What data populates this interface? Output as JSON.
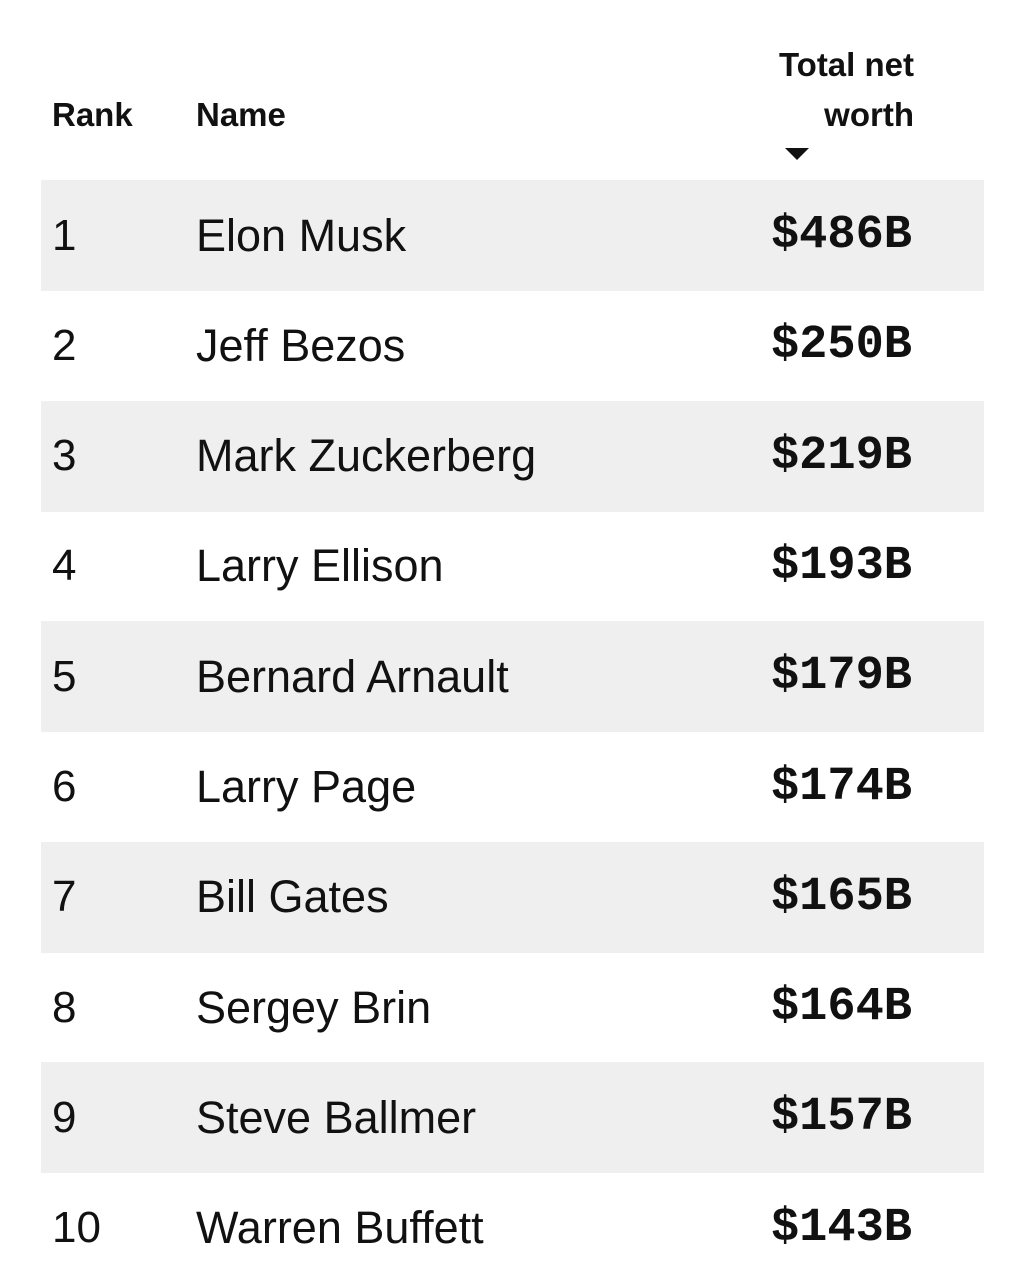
{
  "table": {
    "headers": [
      "Rank",
      "Name",
      "Total net worth"
    ],
    "rows": [
      [
        1,
        "Elon Musk",
        "$486B"
      ],
      [
        2,
        "Jeff Bezos",
        "$250B"
      ],
      [
        3,
        "Mark Zuckerberg",
        "$219B"
      ],
      [
        4,
        "Larry Ellison",
        "$193B"
      ],
      [
        5,
        "Bernard Arnault",
        "$179B"
      ],
      [
        6,
        "Larry Page",
        "$174B"
      ],
      [
        7,
        "Bill Gates",
        "$165B"
      ],
      [
        8,
        "Sergey Brin",
        "$164B"
      ],
      [
        9,
        "Steve Ballmer",
        "$157B"
      ],
      [
        10,
        "Warren Buffett",
        "$143B"
      ]
    ]
  }
}
